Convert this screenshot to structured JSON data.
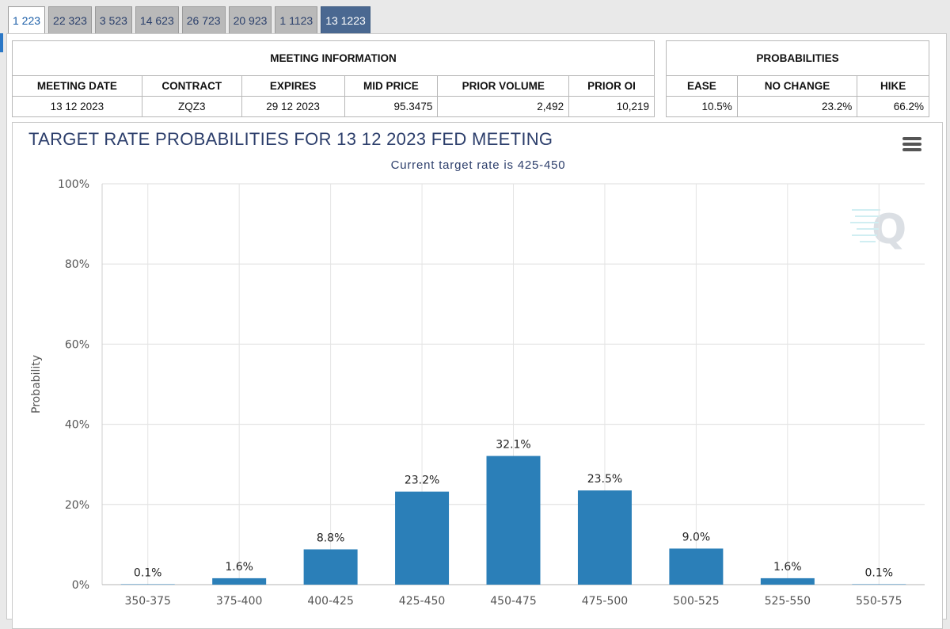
{
  "tabs": [
    {
      "label": "1 223"
    },
    {
      "label": "22 323"
    },
    {
      "label": "3 523"
    },
    {
      "label": "14 623"
    },
    {
      "label": "26 723"
    },
    {
      "label": "20 923"
    },
    {
      "label": "1 1123"
    },
    {
      "label": "13 1223"
    }
  ],
  "meeting_info": {
    "header": "MEETING INFORMATION",
    "columns": [
      "MEETING DATE",
      "CONTRACT",
      "EXPIRES",
      "MID PRICE",
      "PRIOR VOLUME",
      "PRIOR OI"
    ],
    "row": [
      "13 12 2023",
      "ZQZ3",
      "29 12 2023",
      "95.3475",
      "2,492",
      "10,219"
    ]
  },
  "probabilities": {
    "header": "PROBABILITIES",
    "columns": [
      "EASE",
      "NO CHANGE",
      "HIKE"
    ],
    "row": [
      "10.5%",
      "23.2%",
      "66.2%"
    ]
  },
  "colors": {
    "bar": "#2b7fb8",
    "title": "#2c3e6b",
    "active_tab": "#4a6891"
  },
  "chart_data": {
    "type": "bar",
    "title": "TARGET RATE PROBABILITIES FOR 13 12 2023 FED MEETING",
    "subtitle": "Current target rate is 425-450",
    "xlabel": "",
    "ylabel": "Probability",
    "ylim": [
      0,
      100
    ],
    "yticks": [
      "0%",
      "20%",
      "40%",
      "60%",
      "80%",
      "100%"
    ],
    "grid": true,
    "categories": [
      "350-375",
      "375-400",
      "400-425",
      "425-450",
      "450-475",
      "475-500",
      "500-525",
      "525-550",
      "550-575"
    ],
    "values": [
      0.1,
      1.6,
      8.8,
      23.2,
      32.1,
      23.5,
      9.0,
      1.6,
      0.1
    ],
    "data_labels": [
      "0.1%",
      "1.6%",
      "8.8%",
      "23.2%",
      "32.1%",
      "23.5%",
      "9.0%",
      "1.6%",
      "0.1%"
    ]
  }
}
